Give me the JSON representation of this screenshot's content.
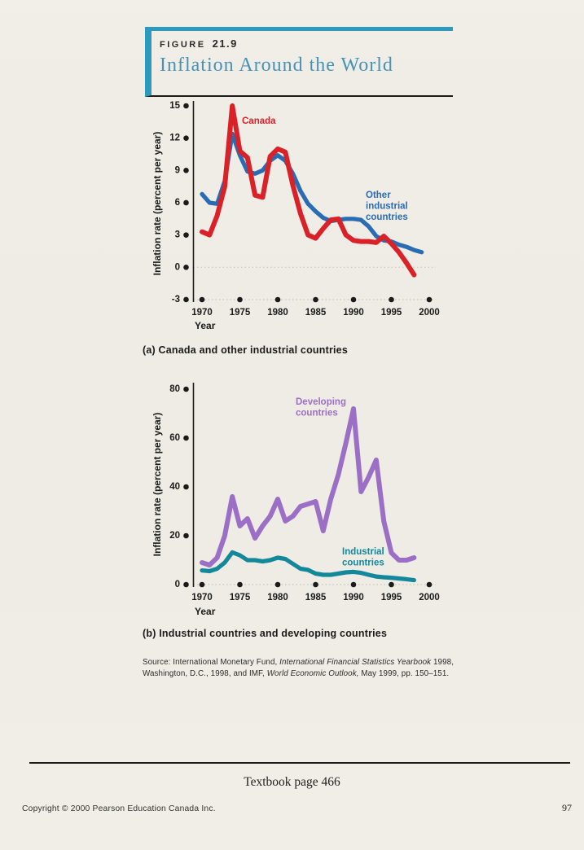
{
  "header": {
    "figure_label": "FIGURE",
    "figure_number": "21.9",
    "title": "Inflation Around the World"
  },
  "colors": {
    "accent_teal": "#2b9abd",
    "title_blue": "#4792b6",
    "canada_red": "#da2127",
    "other_industrial_blue": "#2a6cb4",
    "developing_purple": "#9c6fc7",
    "industrial_teal": "#12889a",
    "paper": "#efede5",
    "ink": "#1b1b1b"
  },
  "chart_data": [
    {
      "type": "line",
      "title": "(a) Canada and other industrial countries",
      "xlabel": "Year",
      "ylabel": "Inflation rate (percent per year)",
      "ylim": [
        -3,
        15
      ],
      "xlim": [
        1970,
        2000
      ],
      "yticks": [
        15,
        12,
        9,
        6,
        3,
        0,
        -3
      ],
      "xticks": [
        1970,
        1975,
        1980,
        1985,
        1990,
        1995,
        2000
      ],
      "grid": "dotted line at 0 and at axis bottom",
      "legend_position": "labels on chart",
      "series": [
        {
          "name": "Canada",
          "color": "#da2127",
          "label_lines": [
            "Canada"
          ],
          "x": [
            1970,
            1971,
            1972,
            1973,
            1974,
            1975,
            1976,
            1977,
            1978,
            1979,
            1980,
            1981,
            1982,
            1983,
            1984,
            1985,
            1986,
            1987,
            1988,
            1989,
            1990,
            1991,
            1992,
            1993,
            1994,
            1995,
            1996,
            1997,
            1998
          ],
          "values": [
            3.3,
            3.0,
            4.8,
            7.5,
            15.0,
            10.8,
            10.2,
            6.7,
            6.5,
            10.3,
            11.0,
            10.7,
            7.6,
            5.0,
            3.0,
            2.7,
            3.6,
            4.4,
            4.5,
            3.0,
            2.5,
            2.4,
            2.4,
            2.3,
            2.9,
            2.2,
            1.4,
            0.4,
            -0.7
          ]
        },
        {
          "name": "Other industrial countries",
          "color": "#2a6cb4",
          "label_lines": [
            "Other",
            "industrial",
            "countries"
          ],
          "x": [
            1970,
            1971,
            1972,
            1973,
            1974,
            1975,
            1976,
            1977,
            1978,
            1979,
            1980,
            1981,
            1982,
            1983,
            1984,
            1985,
            1986,
            1987,
            1988,
            1989,
            1990,
            1991,
            1992,
            1993,
            1994,
            1995,
            1996,
            1997,
            1998,
            1999
          ],
          "values": [
            6.8,
            6.0,
            5.9,
            8.0,
            12.4,
            10.4,
            8.9,
            8.7,
            9.0,
            9.9,
            10.4,
            9.9,
            8.7,
            7.1,
            5.9,
            5.2,
            4.6,
            4.3,
            4.4,
            4.5,
            4.5,
            4.4,
            3.8,
            2.9,
            2.5,
            2.4,
            2.1,
            1.9,
            1.6,
            1.4
          ]
        }
      ]
    },
    {
      "type": "line",
      "title": "(b) Industrial countries and developing countries",
      "xlabel": "Year",
      "ylabel": "Inflation rate (percent per year)",
      "ylim": [
        0,
        80
      ],
      "xlim": [
        1970,
        2000
      ],
      "yticks": [
        80,
        60,
        40,
        20,
        0
      ],
      "xticks": [
        1970,
        1975,
        1980,
        1985,
        1990,
        1995,
        2000
      ],
      "grid": "dotted line at axis bottom",
      "legend_position": "labels on chart",
      "series": [
        {
          "name": "Developing countries",
          "color": "#9c6fc7",
          "label_lines": [
            "Developing",
            "countries"
          ],
          "x": [
            1970,
            1971,
            1972,
            1973,
            1974,
            1975,
            1976,
            1977,
            1978,
            1979,
            1980,
            1981,
            1982,
            1983,
            1984,
            1985,
            1986,
            1987,
            1988,
            1989,
            1990,
            1991,
            1992,
            1993,
            1994,
            1995,
            1996,
            1997,
            1998
          ],
          "values": [
            9,
            8,
            11,
            20,
            36,
            24,
            27,
            19,
            24,
            28,
            35,
            26,
            28,
            32,
            33,
            34,
            22,
            35,
            45,
            58,
            72,
            38,
            44,
            51,
            26,
            13,
            10,
            10,
            11
          ]
        },
        {
          "name": "Industrial countries",
          "color": "#12889a",
          "label_lines": [
            "Industrial",
            "countries"
          ],
          "x": [
            1970,
            1971,
            1972,
            1973,
            1974,
            1975,
            1976,
            1977,
            1978,
            1979,
            1980,
            1981,
            1982,
            1983,
            1984,
            1985,
            1986,
            1987,
            1988,
            1989,
            1990,
            1991,
            1992,
            1993,
            1994,
            1995,
            1996,
            1997,
            1998
          ],
          "values": [
            5.8,
            5.5,
            6.5,
            9.0,
            13.2,
            12.0,
            10.0,
            10.0,
            9.5,
            10.0,
            11.0,
            10.5,
            8.5,
            6.5,
            6.0,
            4.5,
            4.0,
            4.0,
            4.5,
            5.0,
            5.2,
            4.8,
            4.0,
            3.3,
            3.0,
            2.8,
            2.5,
            2.2,
            1.8
          ]
        }
      ]
    }
  ],
  "source": {
    "line1_pre": "Source: International Monetary Fund, ",
    "line1_italic": "International Financial Statistics Yearbook",
    "line1_post": " 1998,",
    "line2_pre": "Washington, D.C., 1998, and IMF, ",
    "line2_italic": "World Economic Outlook,",
    "line2_post": " May 1999, pp. 150–151."
  },
  "footer": {
    "page_ref": "Textbook page 466",
    "copyright": "Copyright © 2000 Pearson Education Canada Inc.",
    "page_number": "97"
  }
}
